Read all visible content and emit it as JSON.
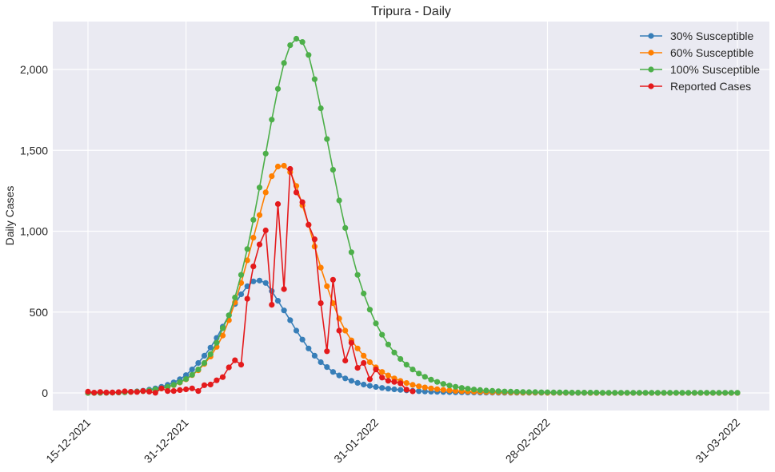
{
  "chart_data": {
    "type": "line",
    "title": "Tripura - Daily",
    "xlabel": "",
    "ylabel": "Daily Cases",
    "x_start": "15-12-2021",
    "x_end": "31-03-2022",
    "xlim": [
      "15-12-2021",
      "31-03-2022"
    ],
    "ylim": [
      -110,
      2270
    ],
    "x_ticks": [
      "15-12-2021",
      "31-12-2021",
      "31-01-2022",
      "28-02-2022",
      "31-03-2022"
    ],
    "y_ticks": [
      0,
      500,
      1000,
      1500,
      2000
    ],
    "y_tick_labels": [
      "0",
      "500",
      "1,000",
      "1,500",
      "2,000"
    ],
    "grid": true,
    "legend_position": "top-right",
    "series": [
      {
        "name": "30% Susceptible",
        "color": "#377eb8",
        "values": [
          0,
          0,
          1,
          1,
          2,
          3,
          5,
          7,
          10,
          14,
          20,
          28,
          38,
          50,
          65,
          85,
          110,
          145,
          185,
          230,
          280,
          340,
          410,
          480,
          550,
          610,
          660,
          690,
          695,
          680,
          630,
          570,
          510,
          450,
          385,
          330,
          275,
          230,
          190,
          160,
          130,
          108,
          90,
          75,
          62,
          52,
          44,
          37,
          31,
          26,
          22,
          19,
          16,
          13,
          11,
          9,
          8,
          7,
          6,
          5,
          4,
          4,
          3,
          3,
          2,
          2,
          2,
          1,
          1,
          1,
          1,
          1,
          1,
          1,
          1,
          1,
          1,
          1,
          0,
          0,
          0,
          0,
          0,
          0,
          0,
          0,
          0,
          0,
          0,
          0,
          0,
          0,
          0,
          0,
          0,
          0,
          0,
          0,
          0,
          0,
          0,
          0,
          0,
          0,
          0,
          0,
          0
        ]
      },
      {
        "name": "60% Susceptible",
        "color": "#ff7f00",
        "values": [
          0,
          0,
          1,
          1,
          2,
          3,
          4,
          6,
          8,
          11,
          15,
          20,
          27,
          36,
          48,
          64,
          84,
          110,
          140,
          180,
          225,
          285,
          355,
          450,
          560,
          680,
          820,
          960,
          1100,
          1240,
          1340,
          1400,
          1405,
          1365,
          1280,
          1160,
          1040,
          905,
          775,
          660,
          555,
          460,
          385,
          325,
          275,
          230,
          190,
          158,
          130,
          108,
          90,
          74,
          61,
          50,
          41,
          34,
          28,
          23,
          19,
          16,
          13,
          11,
          9,
          8,
          7,
          6,
          5,
          4,
          4,
          3,
          3,
          2,
          2,
          2,
          2,
          1,
          1,
          1,
          1,
          1,
          1,
          1,
          0,
          0,
          0,
          0,
          0,
          0,
          0,
          0,
          0,
          0,
          0,
          0,
          0,
          0,
          0,
          0,
          0,
          0,
          0,
          0,
          0,
          0,
          0,
          0,
          0
        ]
      },
      {
        "name": "100% Susceptible",
        "color": "#4daf4a",
        "values": [
          0,
          0,
          1,
          1,
          2,
          3,
          4,
          6,
          8,
          11,
          16,
          22,
          29,
          38,
          50,
          66,
          86,
          112,
          145,
          185,
          240,
          310,
          400,
          480,
          590,
          730,
          890,
          1070,
          1270,
          1480,
          1690,
          1880,
          2040,
          2150,
          2190,
          2170,
          2090,
          1940,
          1760,
          1570,
          1380,
          1190,
          1020,
          870,
          730,
          615,
          515,
          430,
          360,
          300,
          250,
          210,
          175,
          145,
          120,
          100,
          82,
          68,
          56,
          46,
          38,
          31,
          26,
          21,
          18,
          15,
          13,
          11,
          9,
          8,
          7,
          6,
          5,
          5,
          4,
          4,
          3,
          3,
          3,
          2,
          2,
          2,
          2,
          2,
          1,
          1,
          1,
          1,
          1,
          1,
          1,
          1,
          1,
          1,
          1,
          1,
          1,
          1,
          1,
          1,
          1,
          1,
          1,
          1,
          1,
          1,
          1
        ]
      },
      {
        "name": "Reported Cases",
        "color": "#e41a1c",
        "values": [
          8,
          2,
          6,
          3,
          3,
          5,
          10,
          7,
          6,
          12,
          8,
          1,
          28,
          12,
          12,
          18,
          22,
          28,
          12,
          48,
          52,
          78,
          98,
          158,
          202,
          175,
          582,
          782,
          918,
          1005,
          545,
          1168,
          642,
          1385,
          1240,
          1180,
          1040,
          950,
          555,
          258,
          700,
          385,
          200,
          310,
          155,
          185,
          85,
          145,
          95,
          75,
          68,
          60,
          20,
          10,
          null,
          null,
          null,
          null,
          null,
          null,
          null,
          null,
          null,
          null,
          null,
          null,
          null,
          null,
          null,
          null,
          null,
          null,
          null,
          null,
          null,
          null,
          null,
          null,
          null,
          null,
          null,
          null,
          null,
          null,
          null,
          null,
          null,
          null,
          null,
          null,
          null,
          null,
          null,
          null,
          null,
          null,
          null,
          null,
          null,
          null,
          null,
          null,
          null,
          null,
          null,
          null,
          null
        ]
      }
    ]
  }
}
